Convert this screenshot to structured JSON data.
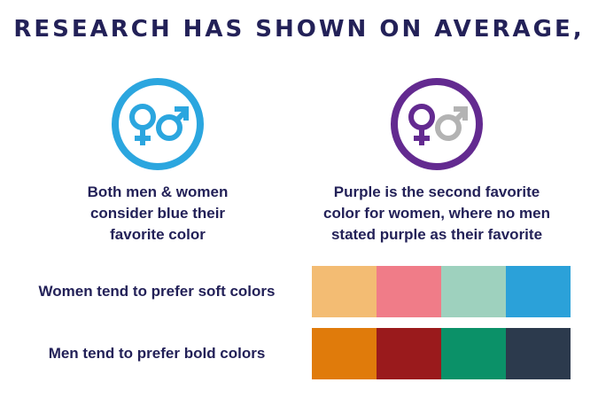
{
  "headline": "RESEARCH HAS SHOWN ON AVERAGE,",
  "left_panel": {
    "icon_color": "#2ba6df",
    "female_color": "#2ba6df",
    "male_color": "#2ba6df",
    "caption_lines": [
      "Both men & women",
      "consider blue their",
      "favorite color"
    ]
  },
  "right_panel": {
    "icon_color": "#632a90",
    "female_color": "#632a90",
    "male_color": "#b3b3b3",
    "caption_lines": [
      "Purple is the second favorite",
      "color for women, where no men",
      "stated purple as their favorite"
    ]
  },
  "rows": [
    {
      "label": "Women tend to prefer soft colors",
      "colors": [
        "#f3bc73",
        "#f07c88",
        "#9ed1be",
        "#2ba1d9"
      ]
    },
    {
      "label": "Men tend to prefer bold colors",
      "colors": [
        "#e07b0b",
        "#9a1a1c",
        "#0b9168",
        "#2c3a4d"
      ]
    }
  ]
}
